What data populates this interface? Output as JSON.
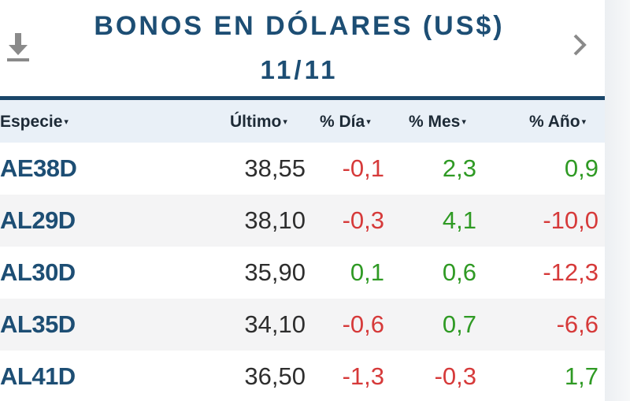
{
  "widget": {
    "title": "BONOS EN DÓLARES (US$)",
    "date": "11/11"
  },
  "icons": {
    "download": "download-icon",
    "next": "chevron-right-icon"
  },
  "colors": {
    "title": "#1d4e74",
    "header_bg": "#e9f0f7",
    "negative": "#d63a3a",
    "positive": "#2f9a24"
  },
  "columns": {
    "especie": "Especie",
    "ultimo": "Último",
    "dia": "% Día",
    "mes": "% Mes",
    "ano": "% Año",
    "sort_arrow": "▾"
  },
  "rows": [
    {
      "especie": "AE38D",
      "ultimo": "38,55",
      "dia": "-0,1",
      "mes": "2,3",
      "ano": "0,9"
    },
    {
      "especie": "AL29D",
      "ultimo": "38,10",
      "dia": "-0,3",
      "mes": "4,1",
      "ano": "-10,0"
    },
    {
      "especie": "AL30D",
      "ultimo": "35,90",
      "dia": "0,1",
      "mes": "0,6",
      "ano": "-12,3"
    },
    {
      "especie": "AL35D",
      "ultimo": "34,10",
      "dia": "-0,6",
      "mes": "0,7",
      "ano": "-6,6"
    },
    {
      "especie": "AL41D",
      "ultimo": "36,50",
      "dia": "-1,3",
      "mes": "-0,3",
      "ano": "1,7"
    }
  ]
}
